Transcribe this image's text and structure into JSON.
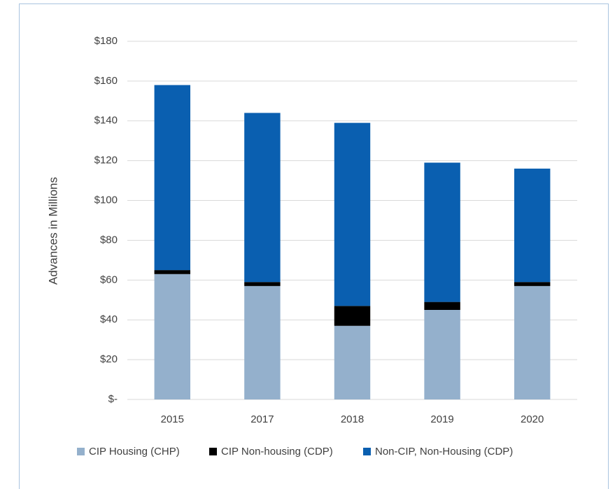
{
  "chart_data": {
    "type": "stacked_bar",
    "y_label": "Advances in Millions",
    "categories": [
      "2015",
      "2017",
      "2018",
      "2019",
      "2020"
    ],
    "series": [
      {
        "name": "CIP Housing (CHP)",
        "color": "#94b0cc",
        "values": [
          63,
          57,
          37,
          45,
          57
        ]
      },
      {
        "name": "CIP Non-housing (CDP)",
        "color": "#000000",
        "values": [
          2,
          2,
          10,
          4,
          2
        ]
      },
      {
        "name": "Non-CIP, Non-Housing (CDP)",
        "color": "#0a5fb0",
        "values": [
          93,
          85,
          92,
          70,
          57
        ]
      }
    ],
    "ylim": [
      0,
      180
    ],
    "yticks": [
      {
        "value": 0,
        "label": "$-"
      },
      {
        "value": 20,
        "label": "$20"
      },
      {
        "value": 40,
        "label": "$40"
      },
      {
        "value": 60,
        "label": "$60"
      },
      {
        "value": 80,
        "label": "$80"
      },
      {
        "value": 100,
        "label": "$100"
      },
      {
        "value": 120,
        "label": "$120"
      },
      {
        "value": 140,
        "label": "$140"
      },
      {
        "value": 160,
        "label": "$160"
      },
      {
        "value": 180,
        "label": "$180"
      }
    ],
    "grid": true
  }
}
